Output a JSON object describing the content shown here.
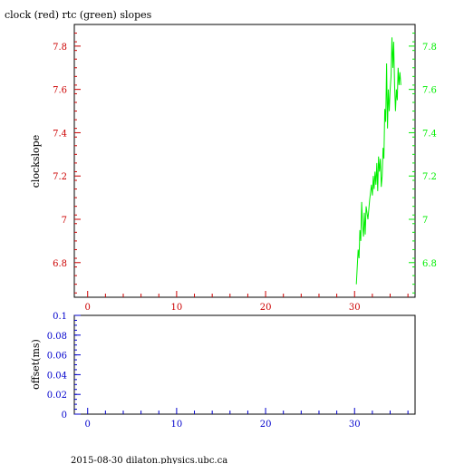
{
  "title": "clock (red) rtc (green) slopes",
  "footer": "2015-08-30  dilaton.physics.ubc.ca",
  "colors": {
    "red": "#cc0000",
    "green": "#00ee00",
    "blue": "#0000cc",
    "axis": "#000000"
  },
  "chart_data": [
    {
      "type": "line",
      "ylabel": "clockslope",
      "xlim": [
        -1.5,
        36.8
      ],
      "ylim": [
        6.64,
        7.9
      ],
      "x_ticks": [
        0,
        10,
        20,
        30
      ],
      "x_tick_labels": [
        "0",
        "10",
        "20",
        "30"
      ],
      "y_ticks_left": [
        6.8,
        7.0,
        7.2,
        7.4,
        7.6,
        7.8
      ],
      "y_tick_labels_left": [
        "6.8",
        "7",
        "7.2",
        "7.4",
        "7.6",
        "7.8"
      ],
      "y_ticks_right": [
        6.8,
        7.0,
        7.2,
        7.4,
        7.6,
        7.8
      ],
      "y_tick_labels_right": [
        "6.8",
        "7",
        "7.2",
        "7.4",
        "7.6",
        "7.8"
      ],
      "grid": false,
      "series": [
        {
          "color": "green",
          "points": [
            [
              30.2,
              6.7
            ],
            [
              30.3,
              6.78
            ],
            [
              30.4,
              6.86
            ],
            [
              30.5,
              6.82
            ],
            [
              30.6,
              6.95
            ],
            [
              30.7,
              6.9
            ],
            [
              30.8,
              7.08
            ],
            [
              30.9,
              6.97
            ],
            [
              31.0,
              6.92
            ],
            [
              31.1,
              7.03
            ],
            [
              31.2,
              6.93
            ],
            [
              31.3,
              7.06
            ],
            [
              31.5,
              7.0
            ],
            [
              31.7,
              7.09
            ],
            [
              31.9,
              7.16
            ],
            [
              32.0,
              7.11
            ],
            [
              32.1,
              7.2
            ],
            [
              32.2,
              7.14
            ],
            [
              32.3,
              7.22
            ],
            [
              32.4,
              7.16
            ],
            [
              32.5,
              7.26
            ],
            [
              32.6,
              7.13
            ],
            [
              32.7,
              7.29
            ],
            [
              32.8,
              7.22
            ],
            [
              32.9,
              7.28
            ],
            [
              33.0,
              7.15
            ],
            [
              33.1,
              7.2
            ],
            [
              33.2,
              7.33
            ],
            [
              33.3,
              7.28
            ],
            [
              33.4,
              7.51
            ],
            [
              33.5,
              7.45
            ],
            [
              33.6,
              7.72
            ],
            [
              33.7,
              7.42
            ],
            [
              33.8,
              7.6
            ],
            [
              33.9,
              7.5
            ],
            [
              34.0,
              7.6
            ],
            [
              34.1,
              7.66
            ],
            [
              34.2,
              7.84
            ],
            [
              34.3,
              7.7
            ],
            [
              34.4,
              7.82
            ],
            [
              34.5,
              7.62
            ],
            [
              34.6,
              7.5
            ],
            [
              34.7,
              7.6
            ],
            [
              34.8,
              7.55
            ],
            [
              34.9,
              7.7
            ],
            [
              35.0,
              7.62
            ],
            [
              35.1,
              7.68
            ],
            [
              35.2,
              7.62
            ]
          ]
        }
      ]
    },
    {
      "type": "line",
      "ylabel": "offset(ms)",
      "xlim": [
        -1.5,
        36.8
      ],
      "ylim": [
        0,
        0.1
      ],
      "x_ticks": [
        0,
        10,
        20,
        30
      ],
      "x_tick_labels": [
        "0",
        "10",
        "20",
        "30"
      ],
      "y_ticks": [
        0,
        0.02,
        0.04,
        0.06,
        0.08,
        0.1
      ],
      "y_tick_labels": [
        "0",
        "0.02",
        "0.04",
        "0.06",
        "0.08",
        "0.1"
      ],
      "grid": false,
      "series": []
    }
  ]
}
